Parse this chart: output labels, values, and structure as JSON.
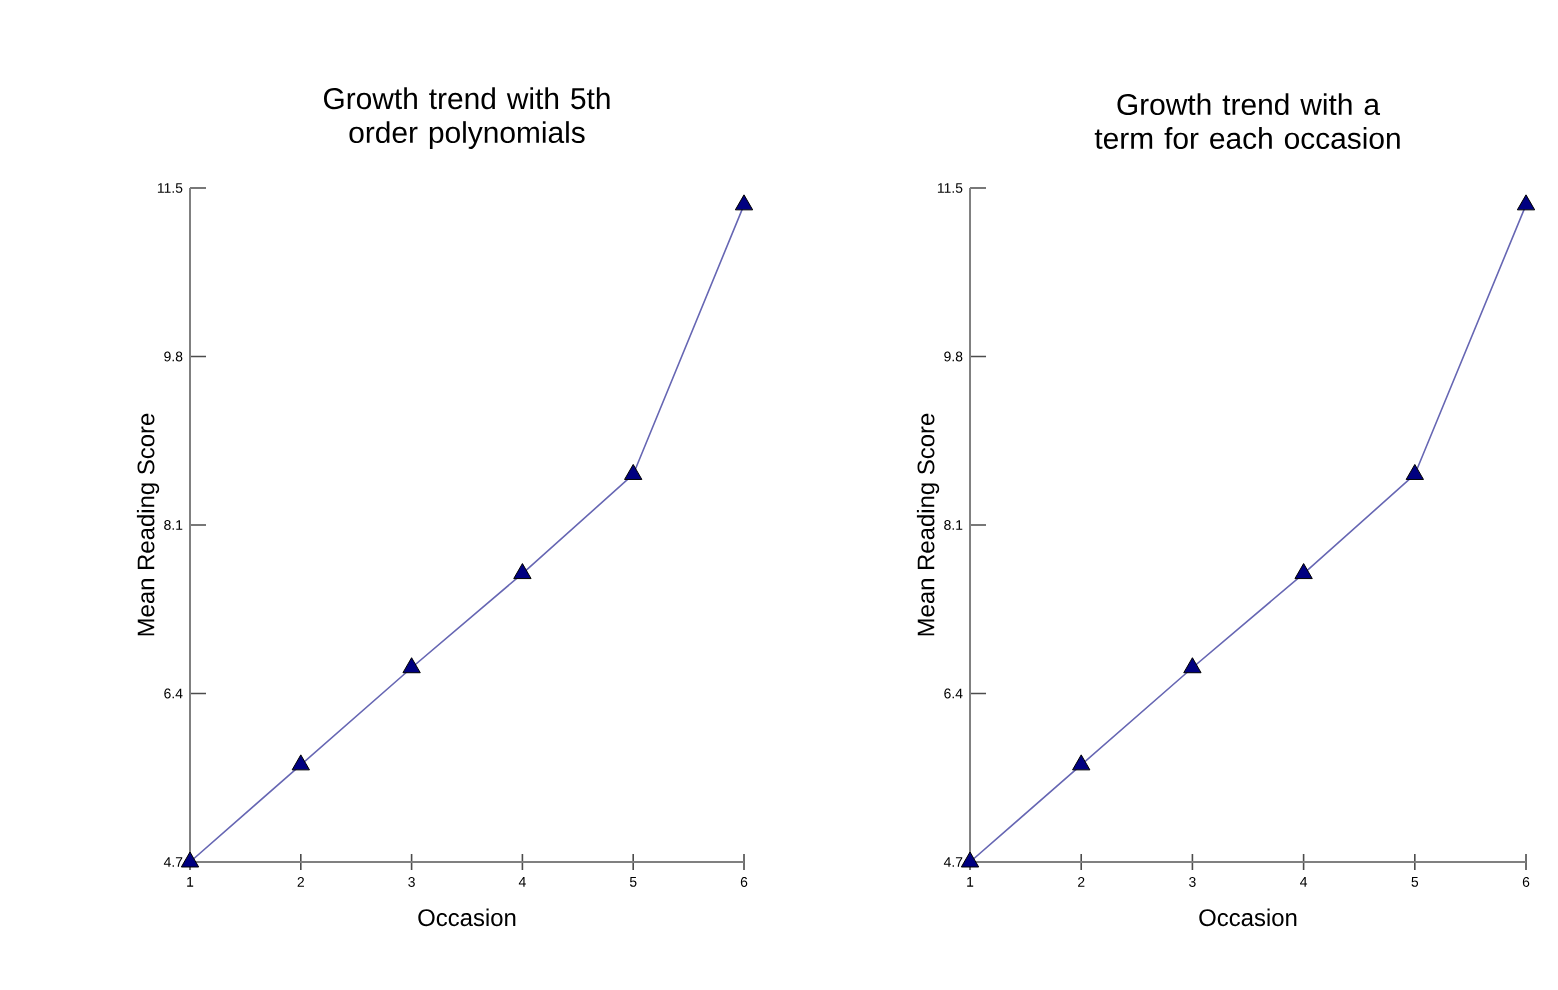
{
  "chart_data": [
    {
      "type": "line",
      "title": "Growth trend with 5th order polynomials",
      "xlabel": "Occasion",
      "ylabel": "Mean Reading Score",
      "x": [
        1,
        2,
        3,
        4,
        5,
        6
      ],
      "xlim": [
        1,
        6
      ],
      "xticks": [
        1,
        2,
        3,
        4,
        5,
        6
      ],
      "ylim": [
        4.7,
        11.5
      ],
      "yticks": [
        4.7,
        6.4,
        8.1,
        9.8,
        11.5
      ],
      "marker": "triangle",
      "grid": false,
      "series": [
        {
          "color": "#000080",
          "values": [
            4.7,
            5.68,
            6.66,
            7.61,
            8.61,
            11.33
          ]
        }
      ]
    },
    {
      "type": "line",
      "title": "Growth trend with a term for each occasion",
      "xlabel": "Occasion",
      "ylabel": "Mean Reading Score",
      "x": [
        1,
        2,
        3,
        4,
        5,
        6
      ],
      "xlim": [
        1,
        6
      ],
      "xticks": [
        1,
        2,
        3,
        4,
        5,
        6
      ],
      "ylim": [
        4.7,
        11.5
      ],
      "yticks": [
        4.7,
        6.4,
        8.1,
        9.8,
        11.5
      ],
      "marker": "triangle",
      "grid": false,
      "series": [
        {
          "color": "#000080",
          "values": [
            4.7,
            5.68,
            6.66,
            7.61,
            8.61,
            11.33
          ]
        }
      ]
    }
  ]
}
